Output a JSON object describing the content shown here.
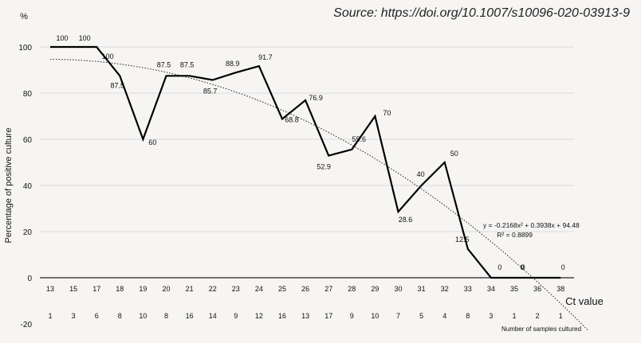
{
  "source_note": "Source: https://doi.org/10.1007/s10096-020-03913-9",
  "chart_data": {
    "type": "line",
    "y_unit": "%",
    "ylabel": "Percentage of positive culture",
    "xlabel": "Ct value",
    "ylim": [
      -20,
      100
    ],
    "yticks": [
      -20,
      0,
      20,
      40,
      60,
      80,
      100
    ],
    "grid": true,
    "x": [
      13,
      15,
      17,
      18,
      19,
      20,
      21,
      22,
      23,
      24,
      25,
      26,
      27,
      28,
      29,
      30,
      31,
      32,
      33,
      34,
      35,
      36,
      38
    ],
    "series": [
      {
        "values": [
          100,
          100,
          100,
          87.5,
          60,
          87.5,
          87.5,
          85.7,
          88.9,
          91.7,
          68.8,
          76.9,
          52.9,
          55.6,
          70,
          28.6,
          40,
          50,
          12.5,
          0,
          0,
          0,
          0
        ],
        "labels": [
          "100",
          "100",
          "100",
          "87.5",
          "60",
          "87.5",
          "87.5",
          "85.7",
          "88.9",
          "91.7",
          "68.8",
          "76.9",
          "52.9",
          "55.6",
          "70",
          "28.6",
          "40",
          "50",
          "12.5",
          "0",
          "0",
          "0",
          "0"
        ],
        "color": "#000000"
      }
    ],
    "trendline": {
      "equation": "y = -0.2168x² + 0.3938x + 94.48",
      "r2": "R² = 0.8899",
      "a": -0.2168,
      "b": 0.3938,
      "c": 94.48,
      "color": "#333333"
    },
    "samples_label": "Number of samples cultured",
    "samples": [
      1,
      3,
      6,
      8,
      10,
      8,
      16,
      14,
      9,
      12,
      16,
      13,
      17,
      9,
      10,
      7,
      5,
      4,
      8,
      3,
      1,
      2,
      1
    ]
  }
}
